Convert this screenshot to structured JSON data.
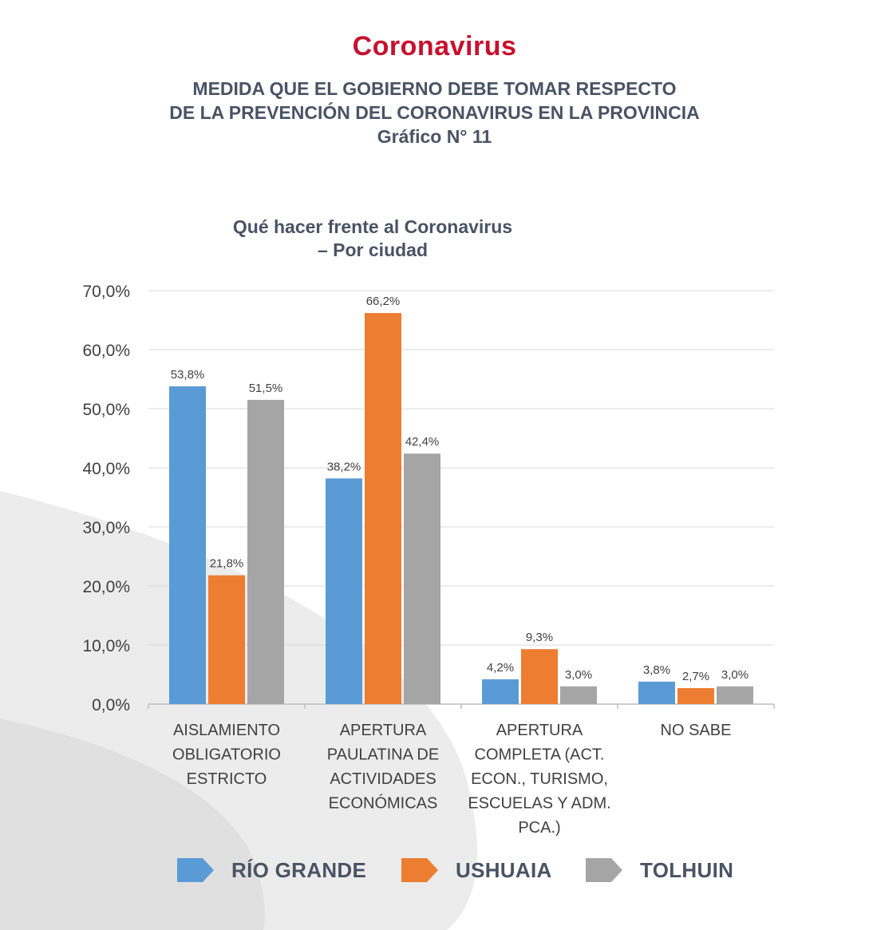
{
  "header": {
    "brand": "Coronavirus",
    "subtitle_line1": "MEDIDA QUE EL GOBIERNO DEBE TOMAR RESPECTO",
    "subtitle_line2": "DE LA PREVENCIÓN DEL CORONAVIRUS EN LA PROVINCIA",
    "subtitle_line3": "Gráfico N° 11"
  },
  "colors": {
    "brand_red": "#c8102e",
    "text_slate": "#4a5364",
    "rio_grande": "#5b9bd5",
    "ushuaia": "#ed7d31",
    "tolhuin": "#a5a5a5"
  },
  "chart_data": {
    "type": "bar",
    "title_line1": "Qué hacer frente al Coronavirus",
    "title_line2": "– Por ciudad",
    "xlabel": "",
    "ylabel": "",
    "ylim": [
      0,
      70
    ],
    "yticks": [
      0,
      10,
      20,
      30,
      40,
      50,
      60,
      70
    ],
    "ytick_labels": [
      "0,0%",
      "10,0%",
      "20,0%",
      "30,0%",
      "40,0%",
      "50,0%",
      "60,0%",
      "70,0%"
    ],
    "grid": true,
    "legend_position": "bottom",
    "categories": [
      [
        "AISLAMIENTO",
        "OBLIGATORIO",
        "ESTRICTO"
      ],
      [
        "APERTURA",
        "PAULATINA DE",
        "ACTIVIDADES",
        "ECONÓMICAS"
      ],
      [
        "APERTURA",
        "COMPLETA (ACT.",
        "ECON., TURISMO,",
        "ESCUELAS Y ADM.",
        "PCA.)"
      ],
      [
        "NO SABE"
      ]
    ],
    "series": [
      {
        "name": "RÍO GRANDE",
        "color": "#5b9bd5",
        "values": [
          53.8,
          38.2,
          4.2,
          3.8
        ],
        "labels": [
          "53,8%",
          "38,2%",
          "4,2%",
          "3,8%"
        ]
      },
      {
        "name": "USHUAIA",
        "color": "#ed7d31",
        "values": [
          21.8,
          66.2,
          9.3,
          2.7
        ],
        "labels": [
          "21,8%",
          "66,2%",
          "9,3%",
          "2,7%"
        ]
      },
      {
        "name": "TOLHUIN",
        "color": "#a5a5a5",
        "values": [
          51.5,
          42.4,
          3.0,
          3.0
        ],
        "labels": [
          "51,5%",
          "42,4%",
          "3,0%",
          "3,0%"
        ]
      }
    ]
  }
}
